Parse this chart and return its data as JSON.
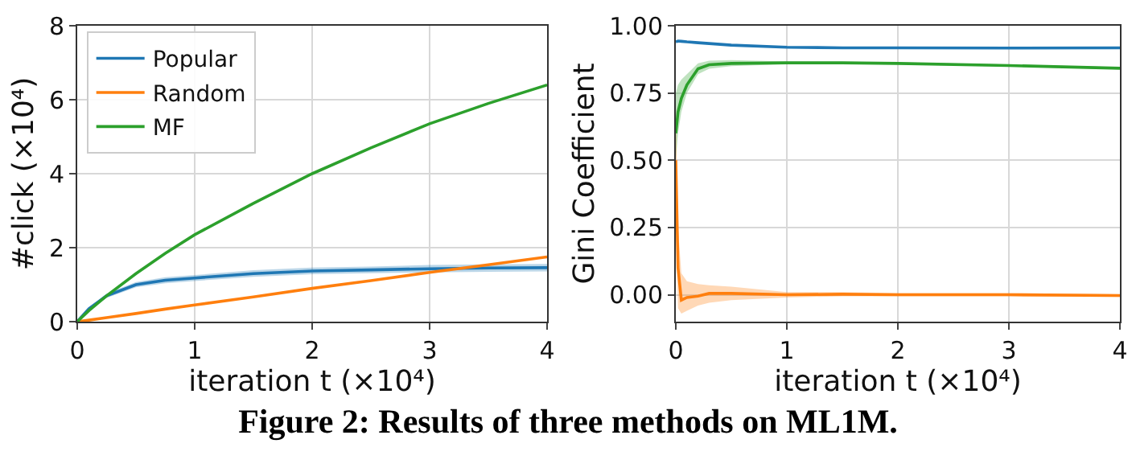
{
  "chart_data": [
    {
      "type": "line",
      "xlabel": "iteration t (×10⁴)",
      "ylabel": "#click (×10⁴)",
      "xlim": [
        0,
        4
      ],
      "xticks": [
        0,
        1,
        2,
        3,
        4
      ],
      "ylim": [
        0,
        8
      ],
      "yticks": [
        0,
        2,
        4,
        6,
        8
      ],
      "grid": true,
      "legend": "top left",
      "x": [
        0,
        0.1,
        0.25,
        0.5,
        0.75,
        1,
        1.5,
        2,
        2.5,
        3,
        3.5,
        4
      ],
      "series": [
        {
          "name": "Popular",
          "color": "#1f77b4",
          "values": [
            0,
            0.35,
            0.7,
            1.0,
            1.12,
            1.18,
            1.3,
            1.37,
            1.4,
            1.43,
            1.45,
            1.46
          ],
          "lower": [
            0,
            0.32,
            0.64,
            0.93,
            1.04,
            1.1,
            1.21,
            1.28,
            1.31,
            1.33,
            1.35,
            1.36
          ],
          "upper": [
            0,
            0.38,
            0.76,
            1.07,
            1.2,
            1.26,
            1.39,
            1.46,
            1.49,
            1.53,
            1.55,
            1.56
          ]
        },
        {
          "name": "Random",
          "color": "#ff7f0e",
          "values": [
            0,
            0.04,
            0.11,
            0.22,
            0.34,
            0.45,
            0.67,
            0.9,
            1.11,
            1.33,
            1.54,
            1.75
          ]
        },
        {
          "name": "MF",
          "color": "#2ca02c",
          "values": [
            0,
            0.3,
            0.7,
            1.3,
            1.85,
            2.35,
            3.2,
            4.0,
            4.7,
            5.35,
            5.9,
            6.4
          ]
        }
      ],
      "annotations": [
        "Figure 2: Results of three methods on ML1M."
      ]
    },
    {
      "type": "line",
      "xlabel": "iteration t (×10⁴)",
      "ylabel": "Gini Coefficient",
      "xlim": [
        0,
        4
      ],
      "xticks": [
        0,
        1,
        2,
        3,
        4
      ],
      "ylim": [
        -0.1,
        1.0
      ],
      "yticks": [
        {
          "value": 0,
          "label": "0.00"
        },
        {
          "value": 0.25,
          "label": "0.25"
        },
        {
          "value": 0.5,
          "label": "0.50"
        },
        {
          "value": 0.75,
          "label": "0.75"
        },
        {
          "value": 1,
          "label": "1.00"
        }
      ],
      "grid": true,
      "x": [
        0,
        0.02,
        0.05,
        0.1,
        0.2,
        0.3,
        0.5,
        1,
        1.5,
        2,
        3,
        4
      ],
      "series": [
        {
          "color": "#1f77b4",
          "values": [
            0.94,
            0.943,
            0.942,
            0.94,
            0.937,
            0.934,
            0.928,
            0.92,
            0.918,
            0.918,
            0.917,
            0.918
          ]
        },
        {
          "color": "#2ca02c",
          "values": [
            0.6,
            0.68,
            0.73,
            0.78,
            0.84,
            0.855,
            0.86,
            0.862,
            0.862,
            0.86,
            0.852,
            0.842
          ],
          "lower": [
            0.5,
            0.6,
            0.68,
            0.75,
            0.82,
            0.84,
            0.85,
            0.857,
            0.858,
            0.856,
            0.848,
            0.838
          ],
          "upper": [
            0.75,
            0.78,
            0.8,
            0.82,
            0.86,
            0.87,
            0.872,
            0.867,
            0.866,
            0.864,
            0.856,
            0.846
          ]
        },
        {
          "color": "#ff7f0e",
          "values": [
            0.5,
            0.1,
            -0.02,
            -0.01,
            -0.005,
            0.005,
            0.005,
            0,
            0.002,
            0,
            0,
            -0.003
          ],
          "lower": [
            0.3,
            -0.05,
            -0.07,
            -0.06,
            -0.04,
            -0.03,
            -0.02,
            -0.01,
            -0.006,
            -0.006,
            -0.006,
            -0.008
          ],
          "upper": [
            0.7,
            0.25,
            0.08,
            0.05,
            0.04,
            0.035,
            0.03,
            0.01,
            0.01,
            0.006,
            0.006,
            0.002
          ]
        }
      ]
    }
  ]
}
